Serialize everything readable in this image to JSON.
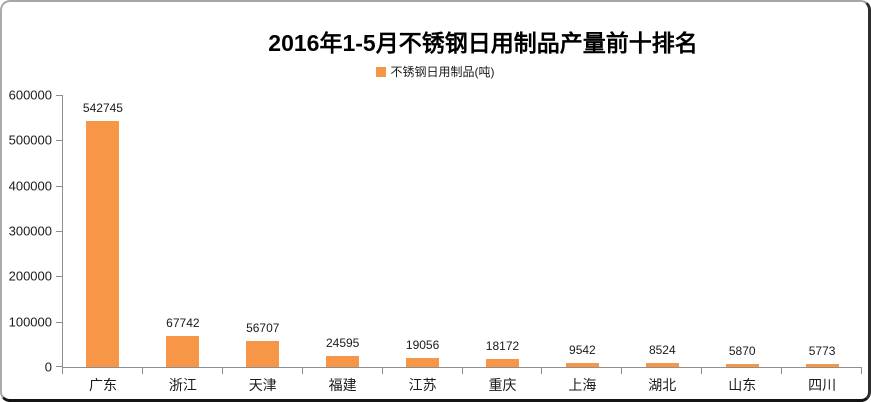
{
  "chart_data": {
    "type": "bar",
    "title": "2016年1-5月不锈钢日用制品产量前十排名",
    "legend": [
      "不锈钢日用制品(吨)"
    ],
    "legend_position": "top",
    "categories": [
      "广东",
      "浙江",
      "天津",
      "福建",
      "江苏",
      "重庆",
      "上海",
      "湖北",
      "山东",
      "四川"
    ],
    "values": [
      542745,
      67742,
      56707,
      24595,
      19056,
      18172,
      9542,
      8524,
      5870,
      5773
    ],
    "xlabel": "",
    "ylabel": "",
    "ylim": [
      0,
      600000
    ],
    "ytick_step": 100000,
    "yticks": [
      0,
      100000,
      200000,
      300000,
      400000,
      500000,
      600000
    ],
    "grid": false,
    "data_labels": true
  },
  "colors": {
    "bar": "#F79646",
    "axis": "#8e8e8e",
    "text": "#1a1a1a",
    "title": "#000000",
    "background": "#ffffff"
  }
}
